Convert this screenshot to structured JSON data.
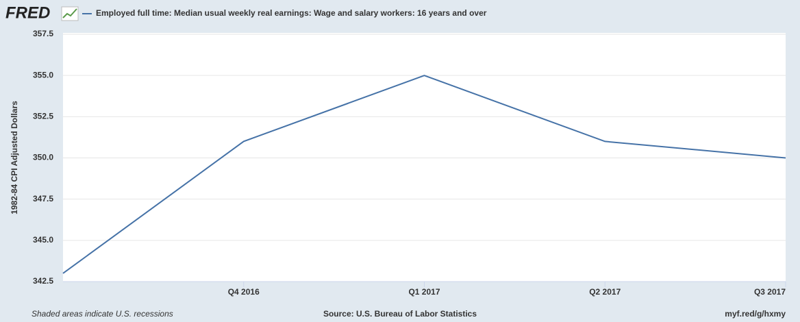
{
  "logo": "FRED",
  "chart_data": {
    "type": "line",
    "title": "Employed full time: Median usual weekly real earnings: Wage and salary workers: 16 years and over",
    "y_label": "1982-84 CPI Adjusted Dollars",
    "categories": [
      null,
      "Q4 2016",
      "Q1 2017",
      "Q2 2017",
      "Q3 2017"
    ],
    "series": [
      {
        "name": "Employed full time: Median usual weekly real earnings: Wage and salary workers: 16 years and over",
        "color": "#4572a7",
        "values": [
          343,
          351,
          355,
          351,
          350
        ]
      }
    ],
    "ylim": [
      342.5,
      357.5
    ],
    "yticks": [
      342.5,
      {
        "value": 345,
        "label": "345.0"
      },
      347.5,
      {
        "value": 350,
        "label": "350.0"
      },
      352.5,
      {
        "value": 355,
        "label": "355.0"
      },
      357.5
    ],
    "grid": true,
    "footer_left": "Shaded areas indicate U.S. recessions",
    "source": "Source: U.S. Bureau of Labor Statistics",
    "link": "myf.red/g/hxmy"
  }
}
